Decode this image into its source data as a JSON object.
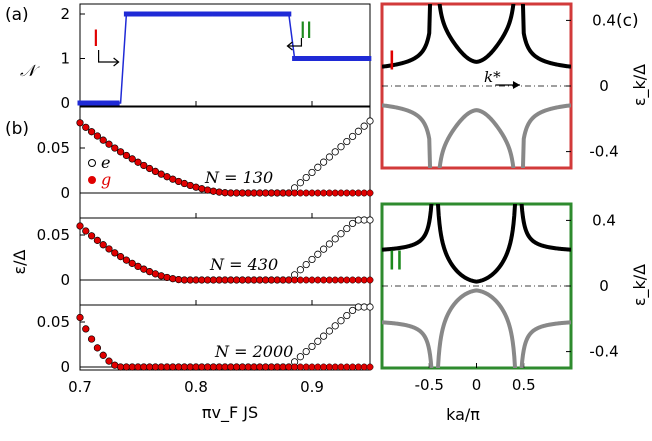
{
  "panel_tags": {
    "a": "(a)",
    "b": "(b)",
    "c": "(c)"
  },
  "ylabel_a": "𝒩",
  "ylabel_b": "ε/Δ",
  "xlabel_left": "πv_F JS",
  "xlabel_right": "ka/π",
  "ylabel_right": "ε_k/Δ",
  "k_star_label": "k*",
  "legend": {
    "e": "e",
    "g": "g"
  },
  "region_labels": {
    "I": "I",
    "II": "II"
  },
  "subplot_labels": [
    "N = 130",
    "N = 430",
    "N = 2000"
  ],
  "colors": {
    "blue": "#1f2ad6",
    "red": "#e00000",
    "green": "#1d8a1d",
    "black": "#000000",
    "grey": "#888888",
    "frame_I": "#d23a3a",
    "frame_II": "#2e8b2e"
  },
  "chart_data": [
    {
      "id": "a",
      "type": "line",
      "xlim": [
        0.7,
        0.95
      ],
      "ylim": [
        0,
        2
      ],
      "yticks": [
        "0",
        "1",
        "2"
      ],
      "ylabel": "𝒩",
      "series": [
        {
          "values": [
            [
              0.7,
              0
            ],
            [
              0.735,
              0
            ],
            [
              0.74,
              2
            ],
            [
              0.88,
              2
            ],
            [
              0.885,
              1
            ],
            [
              0.95,
              1
            ]
          ]
        }
      ],
      "annotations": [
        {
          "text": "I",
          "x": 0.737
        },
        {
          "text": "II",
          "x": 0.882
        }
      ]
    },
    {
      "id": "b1",
      "type": "scatter",
      "label": "N = 130",
      "xlim": [
        0.7,
        0.95
      ],
      "ylim": [
        0,
        0.08
      ],
      "yticks": [
        "0",
        "0.05"
      ],
      "series": [
        {
          "name": "e",
          "y0": 0.078,
          "onset": 0.88,
          "end": 0.08
        },
        {
          "name": "g",
          "y0": 0.078,
          "decay_end": 0.83
        }
      ]
    },
    {
      "id": "b2",
      "type": "scatter",
      "label": "N = 430",
      "xlim": [
        0.7,
        0.95
      ],
      "ylim": [
        0,
        0.08
      ],
      "yticks": [
        "0",
        "0.05"
      ],
      "series": [
        {
          "name": "e",
          "y0": 0.06,
          "onset": 0.88,
          "end": 0.08
        },
        {
          "name": "g",
          "y0": 0.06,
          "decay_end": 0.79
        }
      ]
    },
    {
      "id": "b3",
      "type": "scatter",
      "label": "N = 2000",
      "xlim": [
        0.7,
        0.95
      ],
      "ylim": [
        0,
        0.08
      ],
      "xticks": [
        "0.7",
        "0.8",
        "0.9"
      ],
      "yticks": [
        "0",
        "0.05"
      ],
      "series": [
        {
          "name": "e",
          "y0": 0.055,
          "onset": 0.88,
          "end": 0.08
        },
        {
          "name": "g",
          "y0": 0.055,
          "decay_end": 0.735
        }
      ]
    },
    {
      "id": "c1",
      "type": "line",
      "region": "I",
      "xlim": [
        -1,
        1
      ],
      "ylim": [
        -0.5,
        0.5
      ],
      "yticks": [
        "0.4",
        "0",
        "-0.4"
      ],
      "series": [
        {
          "name": "upper band"
        },
        {
          "name": "lower band"
        }
      ]
    },
    {
      "id": "c2",
      "type": "line",
      "region": "II",
      "xlim": [
        -1,
        1
      ],
      "ylim": [
        -0.5,
        0.5
      ],
      "xticks": [
        "-0.5",
        "0",
        "0.5"
      ],
      "yticks": [
        "0.4",
        "0",
        "-0.4"
      ],
      "series": [
        {
          "name": "upper band"
        },
        {
          "name": "lower band"
        }
      ]
    }
  ]
}
